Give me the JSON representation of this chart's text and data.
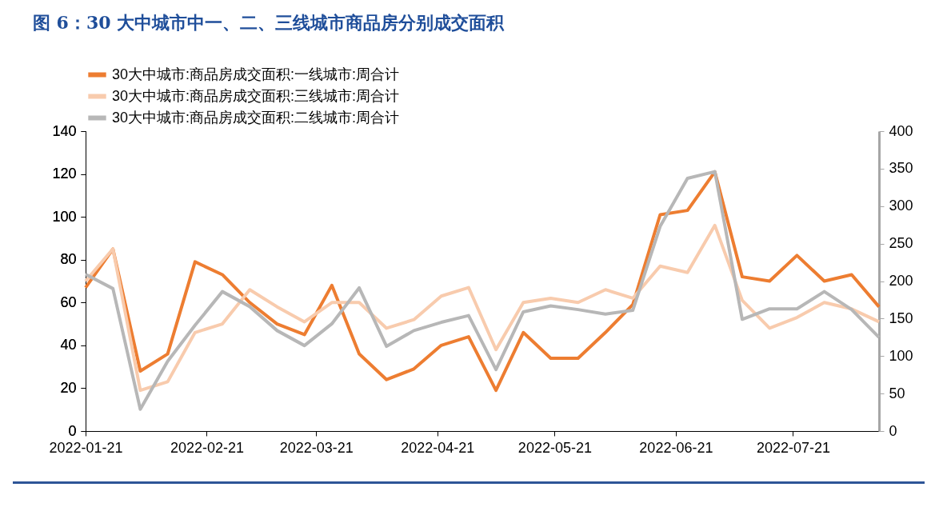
{
  "chart_data": {
    "type": "line",
    "title": "图 6：30 大中城市中一、二、三线城市商品房分别成交面积",
    "x": [
      "2022-01-21",
      "2022-01-28",
      "2022-02-04",
      "2022-02-11",
      "2022-02-18",
      "2022-02-25",
      "2022-03-04",
      "2022-03-11",
      "2022-03-18",
      "2022-03-25",
      "2022-04-01",
      "2022-04-08",
      "2022-04-15",
      "2022-04-22",
      "2022-04-29",
      "2022-05-06",
      "2022-05-13",
      "2022-05-20",
      "2022-05-27",
      "2022-06-03",
      "2022-06-10",
      "2022-06-17",
      "2022-06-24",
      "2022-07-01",
      "2022-07-08",
      "2022-07-15",
      "2022-07-22",
      "2022-07-29",
      "2022-08-05",
      "2022-08-12"
    ],
    "series": [
      {
        "name": "30大中城市:商品房成交面积:一线城市:周合计",
        "color": "#ed7d31",
        "values": [
          67,
          85,
          28,
          36,
          79,
          73,
          60,
          50,
          45,
          68,
          36,
          24,
          29,
          40,
          44,
          19,
          46,
          34,
          34,
          46,
          59,
          101,
          103,
          121,
          72,
          70,
          82,
          70,
          73,
          58
        ]
      },
      {
        "name": "30大中城市:商品房成交面积:三线城市:周合计",
        "color": "#f8cbad",
        "values": [
          70,
          85,
          19,
          23,
          46,
          50,
          66,
          58,
          51,
          60,
          60,
          48,
          52,
          63,
          67,
          38,
          60,
          62,
          60,
          66,
          62,
          77,
          74,
          96,
          61,
          48,
          53,
          60,
          57,
          51
        ]
      },
      {
        "name": "30大中城市:商品房成交面积:二线城市:周合计",
        "color": "#b7b7b7",
        "axis": "y2",
        "values": [
          209,
          190,
          29,
          93,
          141,
          186,
          166,
          134,
          114,
          143,
          191,
          113,
          134,
          145,
          154,
          82,
          159,
          167,
          162,
          156,
          161,
          273,
          337,
          346,
          149,
          163,
          163,
          186,
          162,
          125
        ]
      }
    ],
    "xlim": [
      "2022-01-21",
      "2022-08-12"
    ],
    "xticks": [
      "2022-01-21",
      "2022-02-21",
      "2022-03-21",
      "2022-04-21",
      "2022-05-21",
      "2022-06-21",
      "2022-07-21"
    ],
    "ylim": [
      0,
      140
    ],
    "yticks": [
      0,
      20,
      40,
      60,
      80,
      100,
      120,
      140
    ],
    "y2lim": [
      0,
      400
    ],
    "y2ticks": [
      0,
      50,
      100,
      150,
      200,
      250,
      300,
      350,
      400
    ],
    "legend": "top",
    "grid": false
  }
}
